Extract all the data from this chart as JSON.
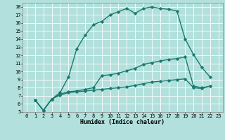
{
  "xlabel": "Humidex (Indice chaleur)",
  "bg_color": "#b2e0dc",
  "grid_color": "#ffffff",
  "line_color": "#1a7a6e",
  "xlim": [
    -0.5,
    23.5
  ],
  "ylim": [
    5,
    18.5
  ],
  "xticks": [
    0,
    1,
    2,
    3,
    4,
    5,
    6,
    7,
    8,
    9,
    10,
    11,
    12,
    13,
    14,
    15,
    16,
    17,
    18,
    19,
    20,
    21,
    22,
    23
  ],
  "yticks": [
    5,
    6,
    7,
    8,
    9,
    10,
    11,
    12,
    13,
    14,
    15,
    16,
    17,
    18
  ],
  "line1_x": [
    1,
    2,
    3,
    4,
    5,
    6,
    7,
    8,
    9,
    10,
    11,
    12,
    13,
    14,
    15,
    16,
    17,
    18,
    19,
    20,
    21,
    22
  ],
  "line1_y": [
    6.5,
    5.2,
    6.6,
    7.4,
    9.3,
    12.8,
    14.5,
    15.8,
    16.2,
    17.0,
    17.4,
    17.8,
    17.2,
    17.8,
    18.0,
    17.8,
    17.7,
    17.5,
    14.0,
    12.1,
    10.5,
    9.3
  ],
  "line2_x": [
    1,
    2,
    3,
    4,
    5,
    6,
    7,
    8,
    9,
    10,
    11,
    12,
    13,
    14,
    15,
    16,
    17,
    18,
    19,
    20,
    21,
    22
  ],
  "line2_y": [
    6.5,
    5.2,
    6.6,
    7.2,
    7.5,
    7.6,
    7.8,
    8.0,
    9.5,
    9.6,
    9.8,
    10.1,
    10.4,
    10.9,
    11.1,
    11.3,
    11.5,
    11.6,
    11.8,
    8.2,
    8.0,
    8.2
  ],
  "line3_x": [
    1,
    2,
    3,
    4,
    5,
    6,
    7,
    8,
    9,
    10,
    11,
    12,
    13,
    14,
    15,
    16,
    17,
    18,
    19,
    20,
    21,
    22
  ],
  "line3_y": [
    6.5,
    5.2,
    6.6,
    7.1,
    7.4,
    7.5,
    7.6,
    7.7,
    7.8,
    7.9,
    8.0,
    8.1,
    8.3,
    8.5,
    8.7,
    8.8,
    8.9,
    9.0,
    9.1,
    8.0,
    7.9,
    8.2
  ],
  "marker": "D",
  "markersize": 1.8,
  "linewidth": 1.0,
  "fontsize_label": 6,
  "fontsize_tick": 5
}
